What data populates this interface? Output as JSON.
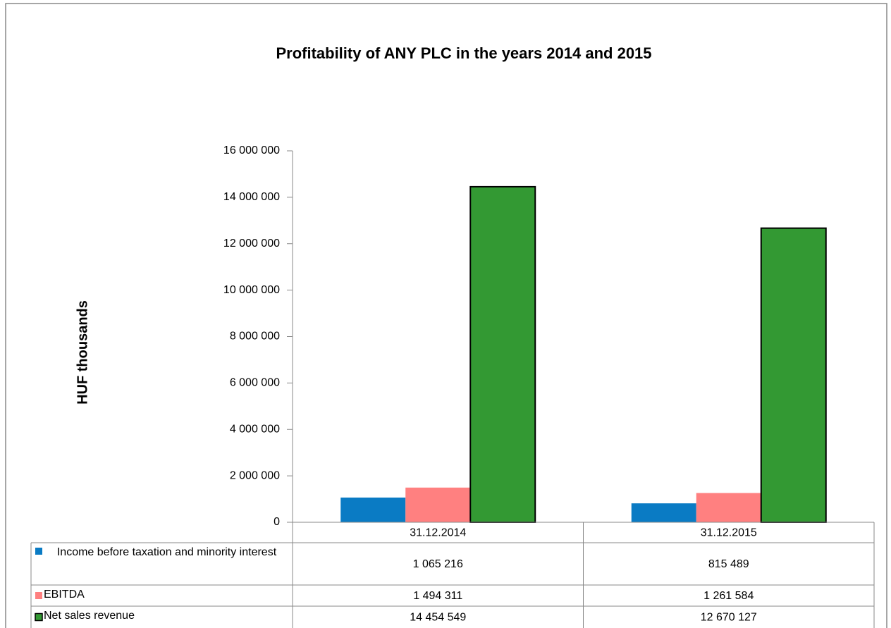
{
  "chart_data": {
    "type": "bar",
    "title": "Profitability of ANY PLC in the years 2014 and 2015",
    "y_label": "HUF thousands",
    "categories": [
      "31.12.2014",
      "31.12.2015"
    ],
    "series": [
      {
        "name": "Income before taxation and minority interest",
        "color": "#0a7bc4",
        "values": [
          1065216,
          815489
        ],
        "value_labels": [
          "1 065 216",
          "815 489"
        ]
      },
      {
        "name": "EBITDA",
        "color": "#ff8080",
        "values": [
          1494311,
          1261584
        ],
        "value_labels": [
          "1 494 311",
          "1 261 584"
        ]
      },
      {
        "name": "Net sales revenue",
        "color": "#339933",
        "values": [
          14454549,
          12670127
        ],
        "value_labels": [
          "14 454 549",
          "12 670 127"
        ]
      }
    ],
    "ylim": [
      0,
      16000000
    ],
    "yticks": [
      0,
      {
        "value": 2000000,
        "label": "2 000 000"
      },
      {
        "value": 4000000,
        "label": "4 000 000"
      },
      {
        "value": 6000000,
        "label": "6 000 000"
      },
      {
        "value": 8000000,
        "label": "8 000 000"
      },
      {
        "value": 10000000,
        "label": "10 000 000"
      },
      {
        "value": 12000000,
        "label": "12 000 000"
      },
      {
        "value": 14000000,
        "label": "14 000 000"
      },
      {
        "value": 16000000,
        "label": "16 000 000"
      }
    ],
    "grid": false,
    "legend": "data-table"
  }
}
